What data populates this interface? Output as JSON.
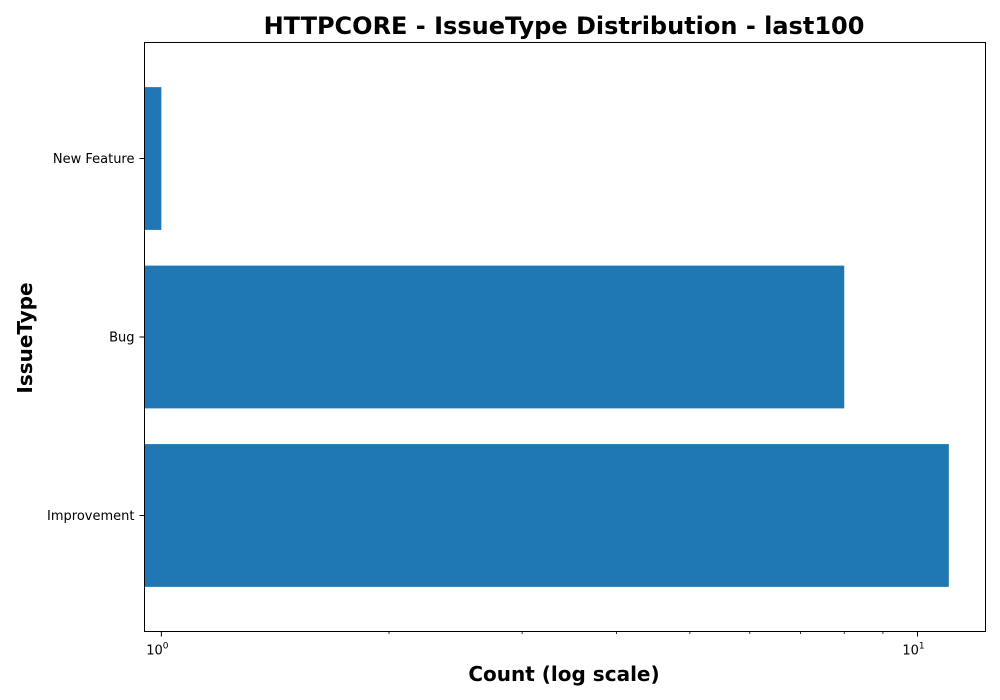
{
  "chart_data": {
    "type": "bar",
    "orientation": "horizontal",
    "title": "HTTPCORE - IssueType Distribution - last100",
    "xlabel": "Count (log scale)",
    "ylabel": "IssueType",
    "x_scale": "log",
    "xlim": [
      0.95,
      12.3
    ],
    "categories": [
      "New Feature",
      "Bug",
      "Improvement"
    ],
    "values": [
      1,
      8,
      11
    ],
    "x_ticks": [
      {
        "value": 1,
        "base": "10",
        "exponent": "0"
      },
      {
        "value": 10,
        "base": "10",
        "exponent": "1"
      }
    ],
    "bar_color": "#1f77b4",
    "grid": false,
    "legend": "none"
  }
}
